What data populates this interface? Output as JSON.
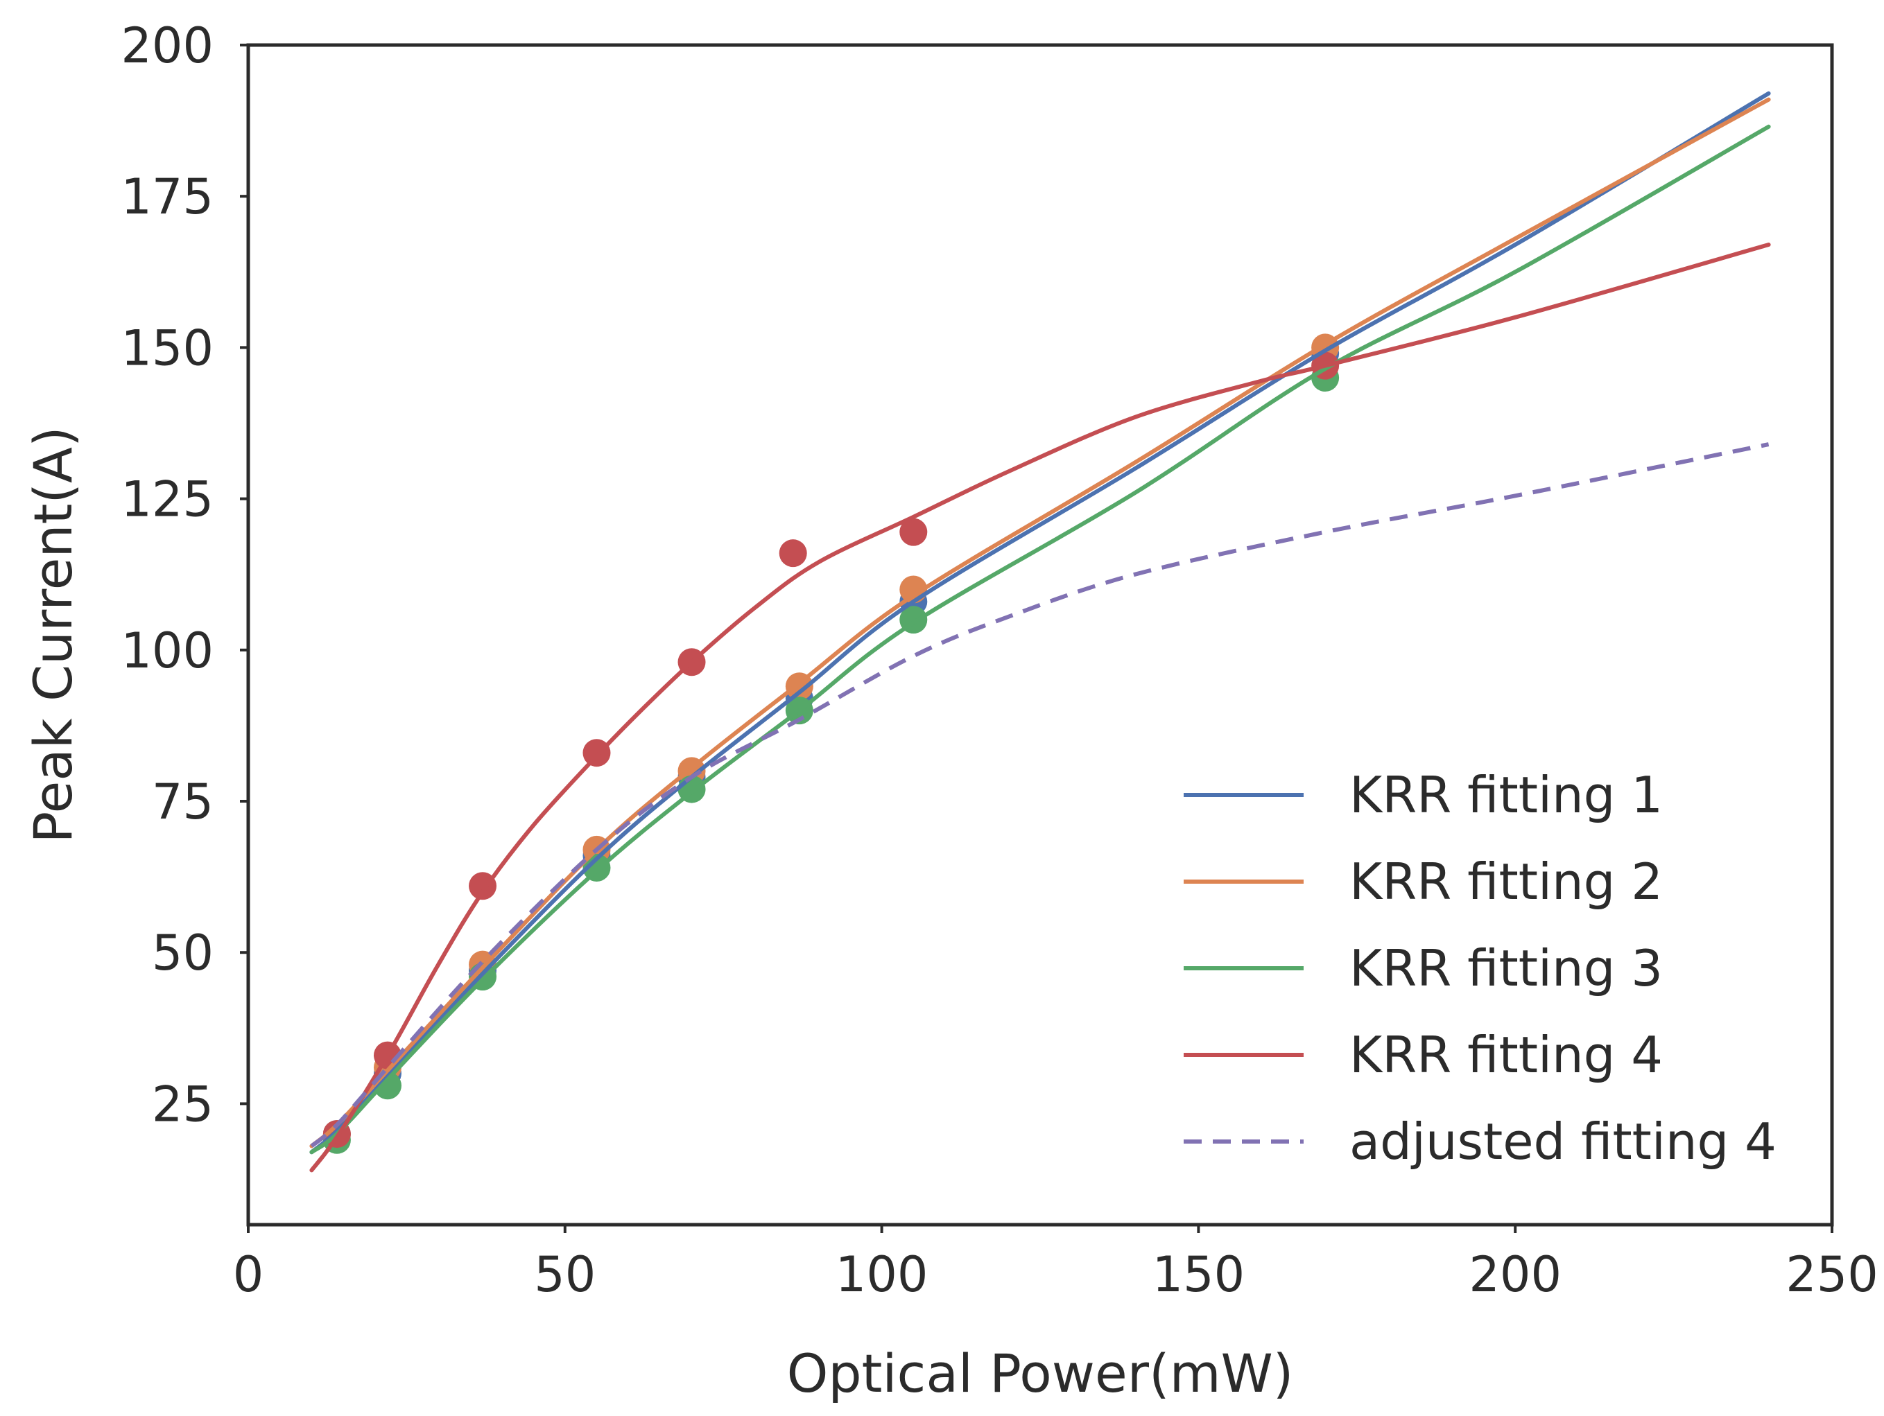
{
  "chart_data": {
    "type": "line",
    "title": "",
    "xlabel": "Optical Power(mW)",
    "ylabel": "Peak Current(A)",
    "xlim": [
      0,
      250
    ],
    "ylim": [
      5,
      200
    ],
    "xticks": [
      0,
      50,
      100,
      150,
      200,
      250
    ],
    "yticks": [
      25,
      50,
      75,
      100,
      125,
      150,
      175,
      200
    ],
    "xtick_labels": [
      "0",
      "50",
      "100",
      "150",
      "200",
      "250"
    ],
    "ytick_labels": [
      "25",
      "50",
      "75",
      "100",
      "125",
      "150",
      "175",
      "200"
    ],
    "grid": false,
    "legend_position": "lower-right",
    "series": [
      {
        "name": "KRR fitting 1",
        "color": "#4c72b0",
        "dash": false,
        "curve": {
          "x": [
            10,
            14,
            22,
            37,
            55,
            70,
            87,
            105,
            140,
            170,
            200,
            240
          ],
          "y": [
            17,
            20.5,
            29.5,
            46.5,
            65.5,
            79,
            93,
            108,
            130,
            149.5,
            167,
            192
          ]
        },
        "points": {
          "x": [
            14,
            22,
            37,
            55,
            70,
            87,
            105,
            170
          ],
          "y": [
            20,
            30,
            47,
            66,
            79,
            92,
            108,
            149
          ]
        }
      },
      {
        "name": "KRR fitting 2",
        "color": "#dd8452",
        "dash": false,
        "curve": {
          "x": [
            10,
            14,
            22,
            37,
            55,
            70,
            87,
            105,
            140,
            170,
            200,
            240
          ],
          "y": [
            18,
            21.5,
            30.5,
            47.5,
            67,
            80.5,
            94.5,
            109,
            131,
            150.5,
            168,
            191
          ]
        },
        "points": {
          "x": [
            14,
            22,
            37,
            55,
            70,
            87,
            105,
            170
          ],
          "y": [
            20,
            31,
            48,
            67,
            80,
            94,
            110,
            150
          ]
        }
      },
      {
        "name": "KRR fitting 3",
        "color": "#55a868",
        "dash": false,
        "curve": {
          "x": [
            10,
            14,
            22,
            37,
            55,
            70,
            87,
            105,
            140,
            170,
            200,
            240
          ],
          "y": [
            17,
            20,
            29,
            45.5,
            63.5,
            76.5,
            90,
            104.5,
            126,
            146.5,
            162.5,
            186.5
          ]
        },
        "points": {
          "x": [
            14,
            22,
            37,
            55,
            70,
            87,
            105,
            170
          ],
          "y": [
            19,
            28,
            46,
            64,
            77,
            90,
            105,
            145
          ]
        }
      },
      {
        "name": "KRR fitting 4",
        "color": "#c44e52",
        "dash": false,
        "curve": {
          "x": [
            10,
            14,
            22,
            30,
            37,
            45,
            55,
            62,
            70,
            80,
            90,
            105,
            120,
            140,
            160,
            170,
            200,
            240
          ],
          "y": [
            14,
            19.5,
            33,
            48,
            60,
            71,
            82.5,
            90,
            98,
            107,
            114.5,
            122,
            129.5,
            138.5,
            144.5,
            147,
            155,
            167
          ]
        },
        "points": {
          "x": [
            14,
            22,
            37,
            55,
            70,
            86,
            105,
            170
          ],
          "y": [
            20,
            33,
            61,
            83,
            98,
            116,
            119.5,
            147
          ]
        }
      },
      {
        "name": "adjusted fitting 4",
        "color": "#8172b3",
        "dash": true,
        "curve": {
          "x": [
            10,
            14,
            22,
            37,
            55,
            70,
            87,
            105,
            120,
            140,
            170,
            200,
            240
          ],
          "y": [
            18,
            21.5,
            31,
            48.5,
            67,
            79,
            88.5,
            99,
            105.5,
            112.5,
            119.5,
            125.5,
            134
          ]
        },
        "points": {
          "x": [],
          "y": []
        }
      }
    ]
  }
}
